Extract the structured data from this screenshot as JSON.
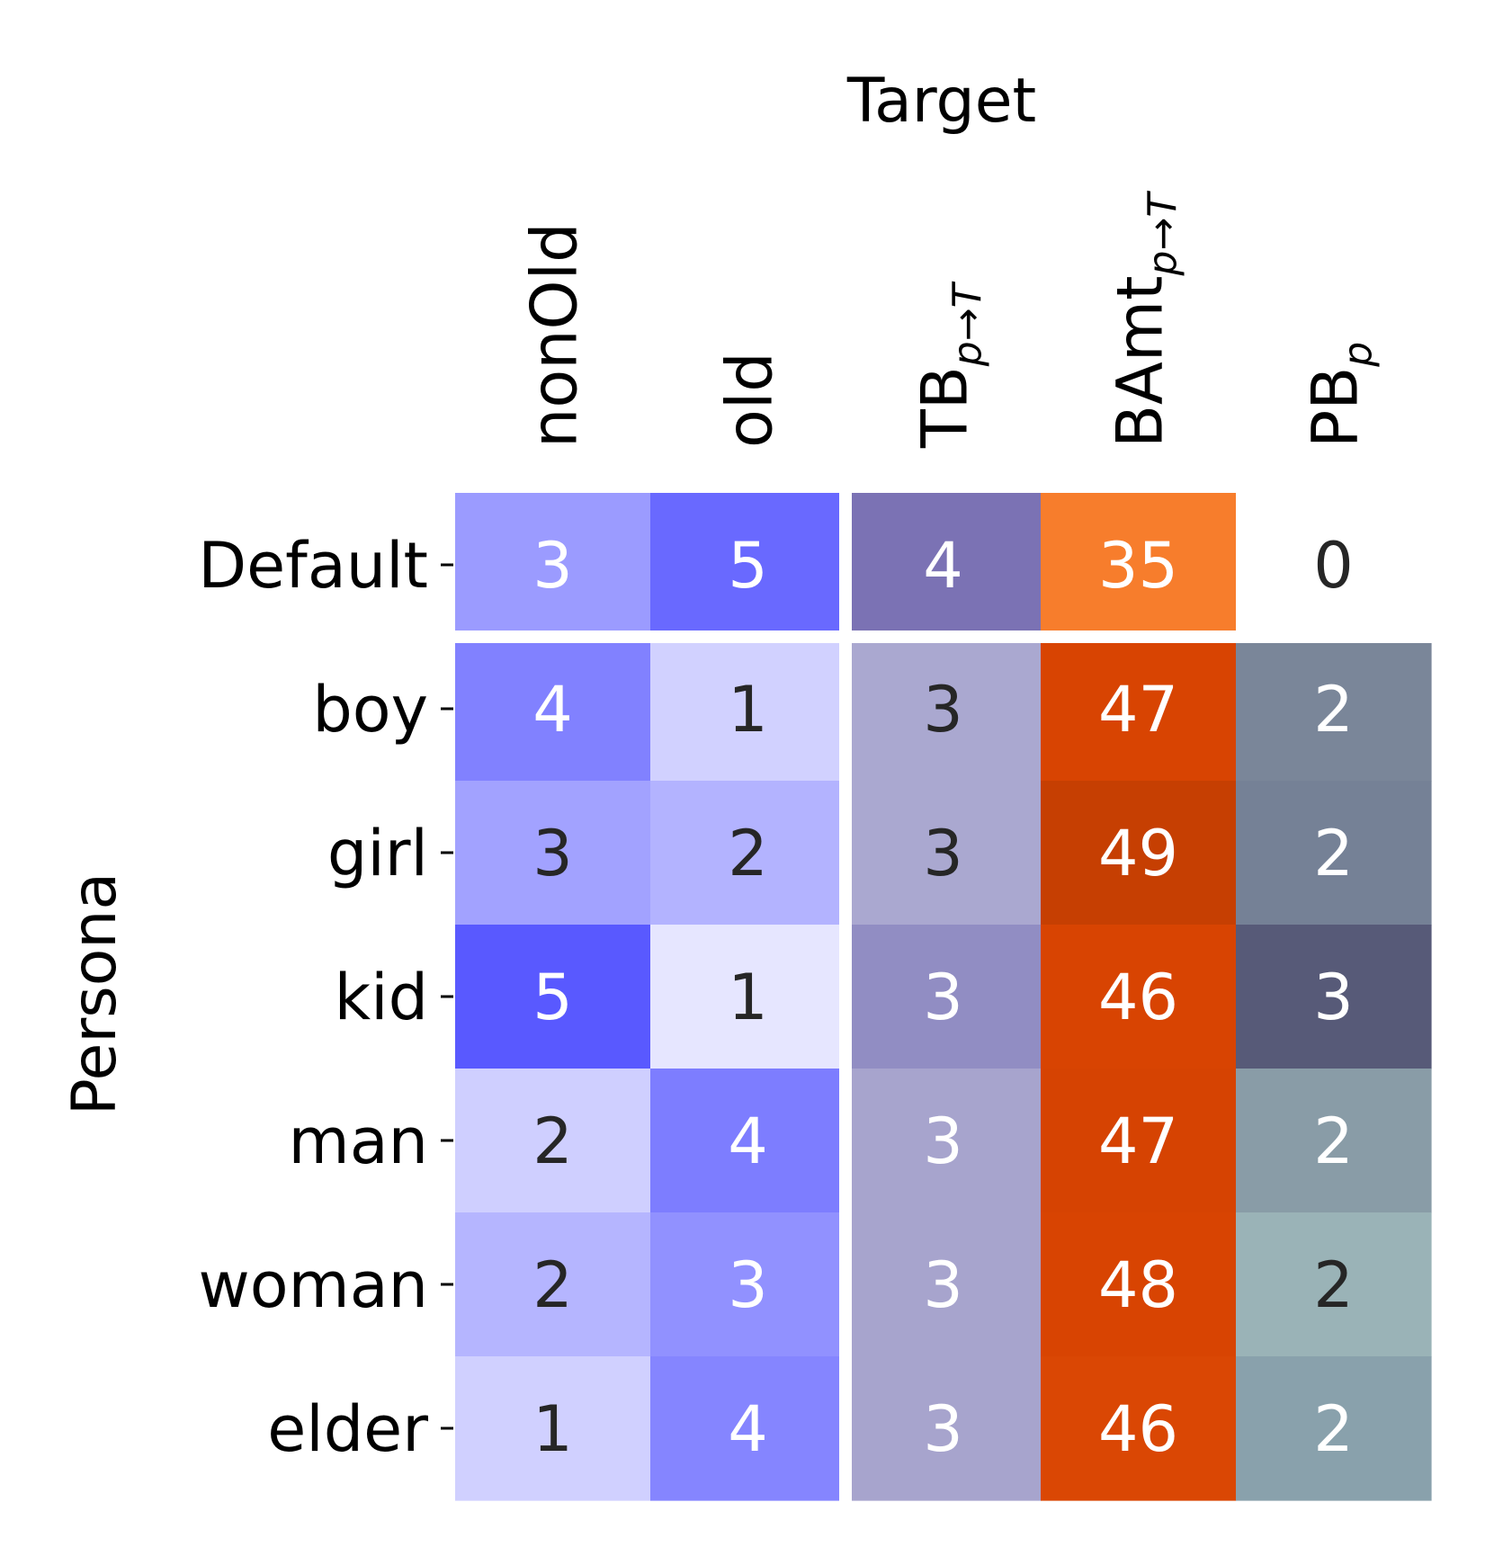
{
  "chart_data": {
    "type": "heatmap",
    "xlabel": "Target",
    "ylabel": "Persona",
    "columns": [
      {
        "base": "nonOld",
        "sub": ""
      },
      {
        "base": "old",
        "sub": ""
      },
      {
        "base": "TB",
        "sub": "p→T"
      },
      {
        "base": "BAmt",
        "sub": "p→T"
      },
      {
        "base": "PB",
        "sub": "p"
      }
    ],
    "rows": [
      "Default",
      "boy",
      "girl",
      "kid",
      "man",
      "woman",
      "elder"
    ],
    "values": [
      [
        3,
        5,
        4,
        35,
        0
      ],
      [
        4,
        1,
        3,
        47,
        2
      ],
      [
        3,
        2,
        3,
        49,
        2
      ],
      [
        5,
        1,
        3,
        46,
        3
      ],
      [
        2,
        4,
        3,
        47,
        2
      ],
      [
        2,
        3,
        3,
        48,
        2
      ],
      [
        1,
        4,
        3,
        46,
        2
      ]
    ],
    "cell_colors": [
      [
        "#9b9bff",
        "#6969ff",
        "#7b72b4",
        "#f77d2c",
        "#ffffff"
      ],
      [
        "#8181ff",
        "#d1d1ff",
        "#aaa8d0",
        "#d84402",
        "#7a8699"
      ],
      [
        "#a2a2ff",
        "#b3b3ff",
        "#aaa8d0",
        "#c63f02",
        "#758196"
      ],
      [
        "#5959ff",
        "#e6e6ff",
        "#918dc3",
        "#d84402",
        "#575a78"
      ],
      [
        "#cfcfff",
        "#7d7dff",
        "#a7a4cd",
        "#d64302",
        "#899ca7"
      ],
      [
        "#b5b5ff",
        "#9191ff",
        "#a7a4cd",
        "#d84402",
        "#9ab3b7"
      ],
      [
        "#d0d0ff",
        "#8585ff",
        "#a7a4cd",
        "#da4704",
        "#89a1ac"
      ]
    ],
    "text_colors": [
      [
        "#ffffff",
        "#ffffff",
        "#ffffff",
        "#ffffff",
        "#262626"
      ],
      [
        "#ffffff",
        "#262626",
        "#262626",
        "#ffffff",
        "#ffffff"
      ],
      [
        "#262626",
        "#262626",
        "#262626",
        "#ffffff",
        "#ffffff"
      ],
      [
        "#ffffff",
        "#262626",
        "#ffffff",
        "#ffffff",
        "#ffffff"
      ],
      [
        "#262626",
        "#ffffff",
        "#ffffff",
        "#ffffff",
        "#ffffff"
      ],
      [
        "#262626",
        "#ffffff",
        "#ffffff",
        "#ffffff",
        "#262626"
      ],
      [
        "#262626",
        "#ffffff",
        "#ffffff",
        "#ffffff",
        "#ffffff"
      ]
    ],
    "separators": {
      "after_row": 0,
      "after_column": 1,
      "color": "#ffffff"
    },
    "grid": false,
    "legend": "none"
  }
}
